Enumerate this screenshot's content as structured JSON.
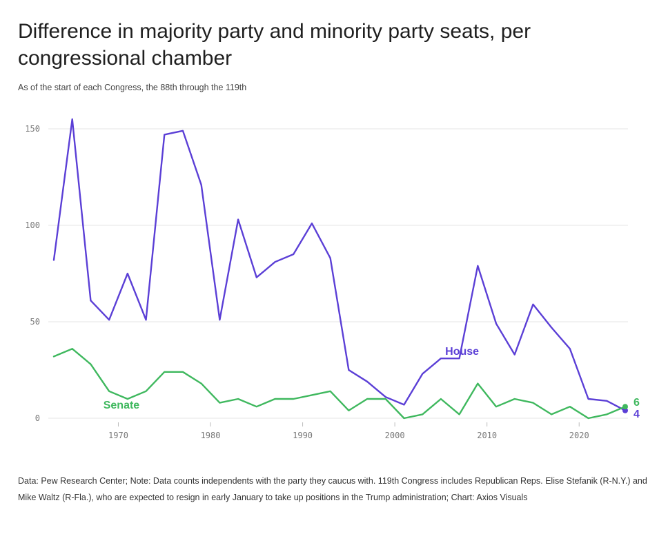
{
  "title": "Difference in majority party and minority party seats, per congressional chamber",
  "subtitle": "As of the start of each Congress, the 88th through the 119th",
  "note": "Data: Pew Research Center; Note: Data counts independents with the party they caucus with. 119th Congress includes Republican Reps. Elise Stefanik (R-N.Y.) and Mike Waltz (R-Fla.), who are expected to resign in early January to take up positions in the Trump administration; Chart: Axios Visuals",
  "chart_data": {
    "type": "line",
    "title": "Difference in majority party and minority party seats, per congressional chamber",
    "xlabel": "",
    "ylabel": "",
    "xlim": [
      1963,
      2025
    ],
    "ylim": [
      0,
      150
    ],
    "x_ticks": [
      1970,
      1980,
      1990,
      2000,
      2010,
      2020
    ],
    "y_ticks": [
      0,
      50,
      100,
      150
    ],
    "grid": true,
    "x": [
      1963,
      1965,
      1967,
      1969,
      1971,
      1973,
      1975,
      1977,
      1979,
      1981,
      1983,
      1985,
      1987,
      1989,
      1991,
      1993,
      1995,
      1997,
      1999,
      2001,
      2003,
      2005,
      2007,
      2009,
      2011,
      2013,
      2015,
      2017,
      2019,
      2021,
      2023,
      2025
    ],
    "series": [
      {
        "name": "House",
        "color": "#5b3fd6",
        "end_value": "4",
        "values": [
          82,
          155,
          61,
          51,
          75,
          51,
          147,
          149,
          121,
          51,
          103,
          73,
          81,
          85,
          101,
          83,
          25,
          19,
          11,
          7,
          23,
          31,
          31,
          79,
          49,
          33,
          59,
          47,
          36,
          10,
          9,
          4
        ]
      },
      {
        "name": "Senate",
        "color": "#3fb85e",
        "end_value": "6",
        "values": [
          32,
          36,
          28,
          14,
          10,
          14,
          24,
          24,
          18,
          8,
          10,
          6,
          10,
          10,
          12,
          14,
          4,
          10,
          10,
          0,
          2,
          10,
          2,
          18,
          6,
          10,
          8,
          2,
          6,
          0,
          2,
          6
        ]
      }
    ]
  }
}
